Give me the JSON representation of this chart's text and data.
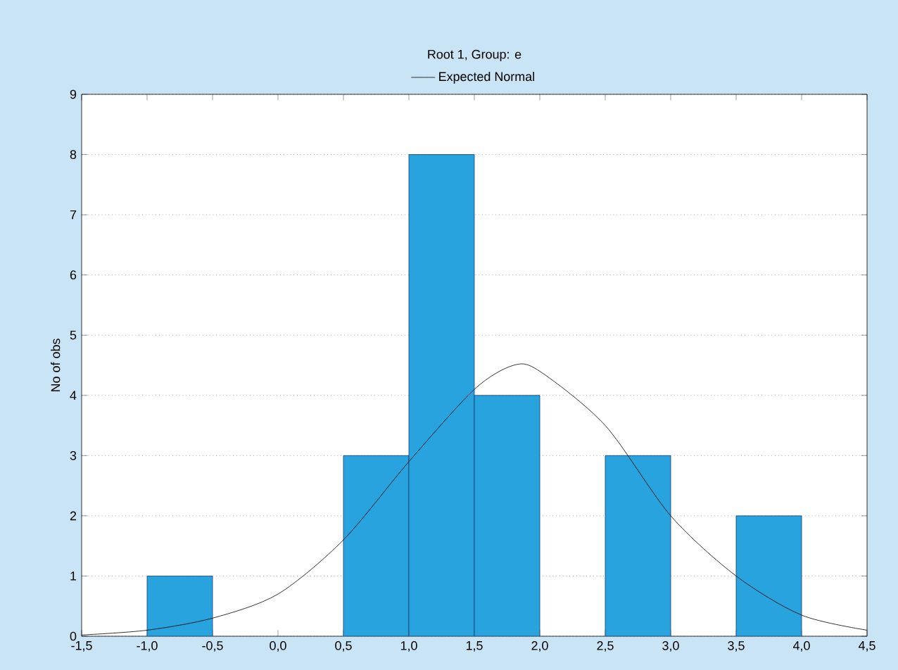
{
  "chart_data": {
    "type": "histogram",
    "title": "Root  1, Group: e",
    "bins": [
      -1.5,
      -1.0,
      -0.5,
      0.0,
      0.5,
      1.0,
      1.5,
      2.0,
      2.5,
      3.0,
      3.5,
      4.0,
      4.5
    ],
    "values": [
      0,
      1,
      0,
      0,
      3,
      8,
      4,
      0,
      3,
      0,
      2,
      0
    ],
    "color": "#29a3dd",
    "series": [
      {
        "name": "Expected Normal",
        "type": "line",
        "color": "#000000",
        "x": [
          -1.5,
          -1.0,
          -0.5,
          0.0,
          0.5,
          1.0,
          1.5,
          1.8,
          2.0,
          2.5,
          3.0,
          3.5,
          4.0,
          4.5
        ],
        "values": [
          0.02,
          0.1,
          0.3,
          0.7,
          1.6,
          2.9,
          4.1,
          4.5,
          4.4,
          3.5,
          2.0,
          1.0,
          0.35,
          0.1
        ]
      }
    ],
    "xlim": [
      -1.5,
      4.5
    ],
    "ylim": [
      0,
      9
    ],
    "xticks": [
      {
        "value": -1.5,
        "label": "-1,5"
      },
      {
        "value": -1.0,
        "label": "-1,0"
      },
      {
        "value": -0.5,
        "label": "-0,5"
      },
      {
        "value": 0.0,
        "label": "0,0"
      },
      {
        "value": 0.5,
        "label": "0,5"
      },
      {
        "value": 1.0,
        "label": "1,0"
      },
      {
        "value": 1.5,
        "label": "1,5"
      },
      {
        "value": 2.0,
        "label": "2,0"
      },
      {
        "value": 2.5,
        "label": "2,5"
      },
      {
        "value": 3.0,
        "label": "3,0"
      },
      {
        "value": 3.5,
        "label": "3,5"
      },
      {
        "value": 4.0,
        "label": "4,0"
      },
      {
        "value": 4.5,
        "label": "4,5"
      }
    ],
    "yticks": [
      0,
      1,
      2,
      3,
      4,
      5,
      6,
      7,
      8,
      9
    ],
    "ylabel": "No of obs",
    "grid": "y",
    "legend": "top"
  }
}
